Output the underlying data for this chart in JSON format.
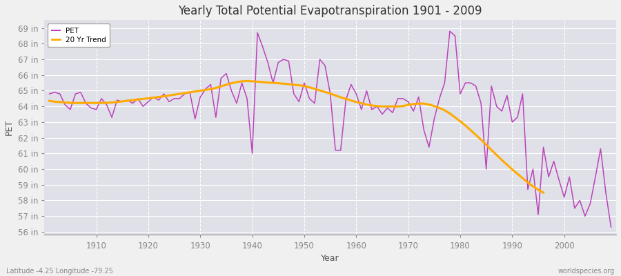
{
  "title": "Yearly Total Potential Evapotranspiration 1901 - 2009",
  "xlabel": "Year",
  "ylabel": "PET",
  "lat_lon_label": "Latitude -4.25 Longitude -79.25",
  "watermark": "worldspecies.org",
  "pet_color": "#bb44bb",
  "trend_color": "#ffaa00",
  "bg_color": "#f0f0f0",
  "plot_bg_color": "#e0e0e8",
  "grid_color": "#ffffff",
  "ylim": [
    55.8,
    69.5
  ],
  "yticks": [
    56,
    57,
    58,
    59,
    60,
    61,
    62,
    63,
    64,
    65,
    66,
    67,
    68,
    69
  ],
  "xlim": [
    1900,
    2010
  ],
  "xticks": [
    1910,
    1920,
    1930,
    1940,
    1950,
    1960,
    1970,
    1980,
    1990,
    2000
  ],
  "years": [
    1901,
    1902,
    1903,
    1904,
    1905,
    1906,
    1907,
    1908,
    1909,
    1910,
    1911,
    1912,
    1913,
    1914,
    1915,
    1916,
    1917,
    1918,
    1919,
    1920,
    1921,
    1922,
    1923,
    1924,
    1925,
    1926,
    1927,
    1928,
    1929,
    1930,
    1931,
    1932,
    1933,
    1934,
    1935,
    1936,
    1937,
    1938,
    1939,
    1940,
    1941,
    1942,
    1943,
    1944,
    1945,
    1946,
    1947,
    1948,
    1949,
    1950,
    1951,
    1952,
    1953,
    1954,
    1955,
    1956,
    1957,
    1958,
    1959,
    1960,
    1961,
    1962,
    1963,
    1964,
    1965,
    1966,
    1967,
    1968,
    1969,
    1970,
    1971,
    1972,
    1973,
    1974,
    1975,
    1976,
    1977,
    1978,
    1979,
    1980,
    1981,
    1982,
    1983,
    1984,
    1985,
    1986,
    1987,
    1988,
    1989,
    1990,
    1991,
    1992,
    1993,
    1994,
    1995,
    1996,
    1997,
    1998,
    1999,
    2000,
    2001,
    2002,
    2003,
    2004,
    2005,
    2006,
    2007,
    2008,
    2009
  ],
  "pet_values": [
    64.8,
    64.9,
    64.8,
    64.1,
    63.8,
    64.8,
    64.9,
    64.2,
    63.9,
    63.8,
    64.5,
    64.1,
    63.3,
    64.4,
    64.3,
    64.4,
    64.2,
    64.5,
    64.0,
    64.3,
    64.6,
    64.4,
    64.8,
    64.3,
    64.5,
    64.5,
    64.8,
    64.9,
    63.2,
    64.6,
    65.1,
    65.4,
    63.3,
    65.8,
    66.1,
    65.0,
    64.2,
    65.5,
    64.5,
    61.0,
    68.7,
    67.8,
    66.8,
    65.5,
    66.8,
    67.0,
    66.9,
    64.8,
    64.3,
    65.5,
    64.5,
    64.2,
    67.0,
    66.6,
    64.8,
    61.2,
    61.2,
    64.4,
    65.4,
    64.8,
    63.8,
    65.0,
    63.8,
    64.0,
    63.5,
    63.9,
    63.6,
    64.5,
    64.5,
    64.3,
    63.7,
    64.6,
    62.5,
    61.4,
    63.2,
    64.5,
    65.5,
    68.8,
    68.5,
    64.8,
    65.5,
    65.5,
    65.3,
    64.2,
    60.0,
    65.3,
    64.0,
    63.7,
    64.7,
    63.0,
    63.3,
    64.8,
    58.7,
    60.0,
    57.1,
    61.4,
    59.5,
    60.5,
    59.3,
    58.2,
    59.5,
    57.5,
    58.0,
    57.0,
    57.8,
    59.5,
    61.3,
    58.5,
    56.3
  ],
  "trend_years": [
    1901,
    1902,
    1903,
    1904,
    1905,
    1906,
    1907,
    1908,
    1909,
    1910,
    1911,
    1912,
    1913,
    1914,
    1915,
    1916,
    1917,
    1918,
    1919,
    1920,
    1921,
    1922,
    1923,
    1924,
    1925,
    1926,
    1927,
    1928,
    1929,
    1930,
    1931,
    1932,
    1933,
    1934,
    1935,
    1936,
    1937,
    1938,
    1939,
    1940,
    1941,
    1942,
    1943,
    1944,
    1945,
    1946,
    1947,
    1948,
    1949,
    1950,
    1951,
    1952,
    1953,
    1954,
    1955,
    1956,
    1957,
    1958,
    1959,
    1960,
    1961,
    1962,
    1963,
    1964,
    1965,
    1966,
    1967,
    1968,
    1969,
    1970,
    1971,
    1972,
    1973,
    1974,
    1975,
    1976,
    1977,
    1978,
    1979,
    1980,
    1981,
    1982,
    1983,
    1984,
    1985,
    1986,
    1987,
    1988,
    1989,
    1990,
    1991,
    1992,
    1993,
    1994,
    1995,
    1996
  ],
  "trend_values": [
    64.35,
    64.3,
    64.28,
    64.25,
    64.23,
    64.22,
    64.22,
    64.22,
    64.22,
    64.22,
    64.22,
    64.23,
    64.25,
    64.28,
    64.32,
    64.36,
    64.4,
    64.44,
    64.48,
    64.52,
    64.56,
    64.6,
    64.65,
    64.7,
    64.75,
    64.8,
    64.85,
    64.9,
    64.95,
    65.0,
    65.05,
    65.1,
    65.18,
    65.28,
    65.38,
    65.48,
    65.55,
    65.6,
    65.62,
    65.6,
    65.58,
    65.55,
    65.52,
    65.5,
    65.48,
    65.45,
    65.42,
    65.38,
    65.35,
    65.3,
    65.22,
    65.12,
    65.02,
    64.92,
    64.82,
    64.7,
    64.58,
    64.48,
    64.38,
    64.28,
    64.2,
    64.12,
    64.06,
    64.02,
    64.0,
    64.0,
    64.0,
    64.0,
    64.02,
    64.1,
    64.15,
    64.18,
    64.18,
    64.12,
    64.02,
    63.9,
    63.75,
    63.55,
    63.3,
    63.05,
    62.78,
    62.48,
    62.18,
    61.88,
    61.55,
    61.22,
    60.9,
    60.58,
    60.28,
    59.98,
    59.7,
    59.42,
    59.15,
    58.9,
    58.68,
    58.5
  ]
}
